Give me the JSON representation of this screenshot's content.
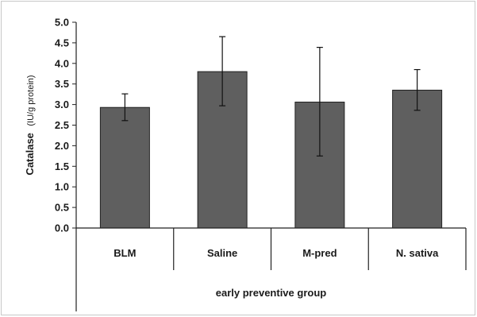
{
  "chart_data": {
    "type": "bar",
    "title": "",
    "ylabel": "Catalase",
    "ylabel_unit": "(IU/g protein)",
    "xlabel": "early preventive group",
    "categories": [
      "BLM",
      "Saline",
      "M-pred",
      "N. sativa"
    ],
    "values": [
      2.93,
      3.8,
      3.06,
      3.35
    ],
    "errors": [
      [
        0.33,
        0.32
      ],
      [
        0.85,
        0.83
      ],
      [
        1.33,
        1.31
      ],
      [
        0.5,
        0.49
      ]
    ],
    "ylim": [
      0,
      5
    ],
    "yticks": [
      "0.0",
      "0.5",
      "1.0",
      "1.5",
      "2.0",
      "2.5",
      "3.0",
      "3.5",
      "4.0",
      "4.5",
      "5.0"
    ],
    "grid": false,
    "legend": false,
    "colors": {
      "bar": "#5f5f5f",
      "bar_edge": "#222222",
      "axis": "#222222"
    }
  }
}
